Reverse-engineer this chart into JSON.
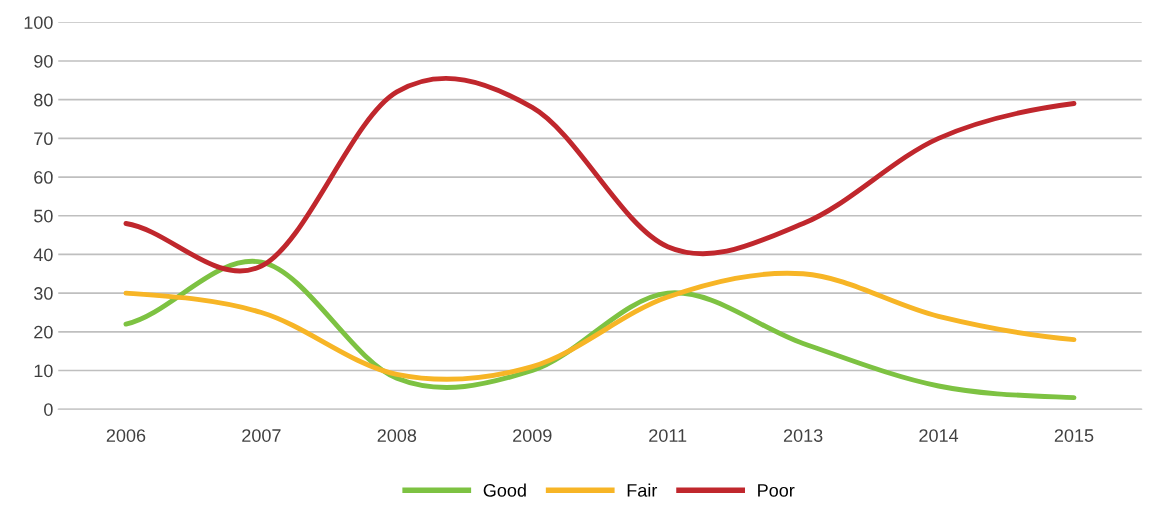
{
  "chart_data": {
    "type": "line",
    "categories": [
      "2006",
      "2007",
      "2008",
      "2009",
      "2011",
      "2013",
      "2014",
      "2015"
    ],
    "series": [
      {
        "name": "Good",
        "color": "#7dc242",
        "values": [
          22,
          38,
          8,
          10,
          30,
          17,
          6,
          3
        ]
      },
      {
        "name": "Fair",
        "color": "#f7b526",
        "values": [
          30,
          25,
          9,
          11,
          29,
          35,
          24,
          18
        ]
      },
      {
        "name": "Poor",
        "color": "#c0272d",
        "values": [
          48,
          37,
          82,
          78,
          42,
          48,
          70,
          79
        ]
      }
    ],
    "ylim": [
      0,
      100
    ],
    "yticks": [
      0,
      10,
      20,
      30,
      40,
      50,
      60,
      70,
      80,
      90,
      100
    ],
    "grid": "y",
    "legend": "bottom",
    "marker": "none",
    "line_style": "solid"
  }
}
